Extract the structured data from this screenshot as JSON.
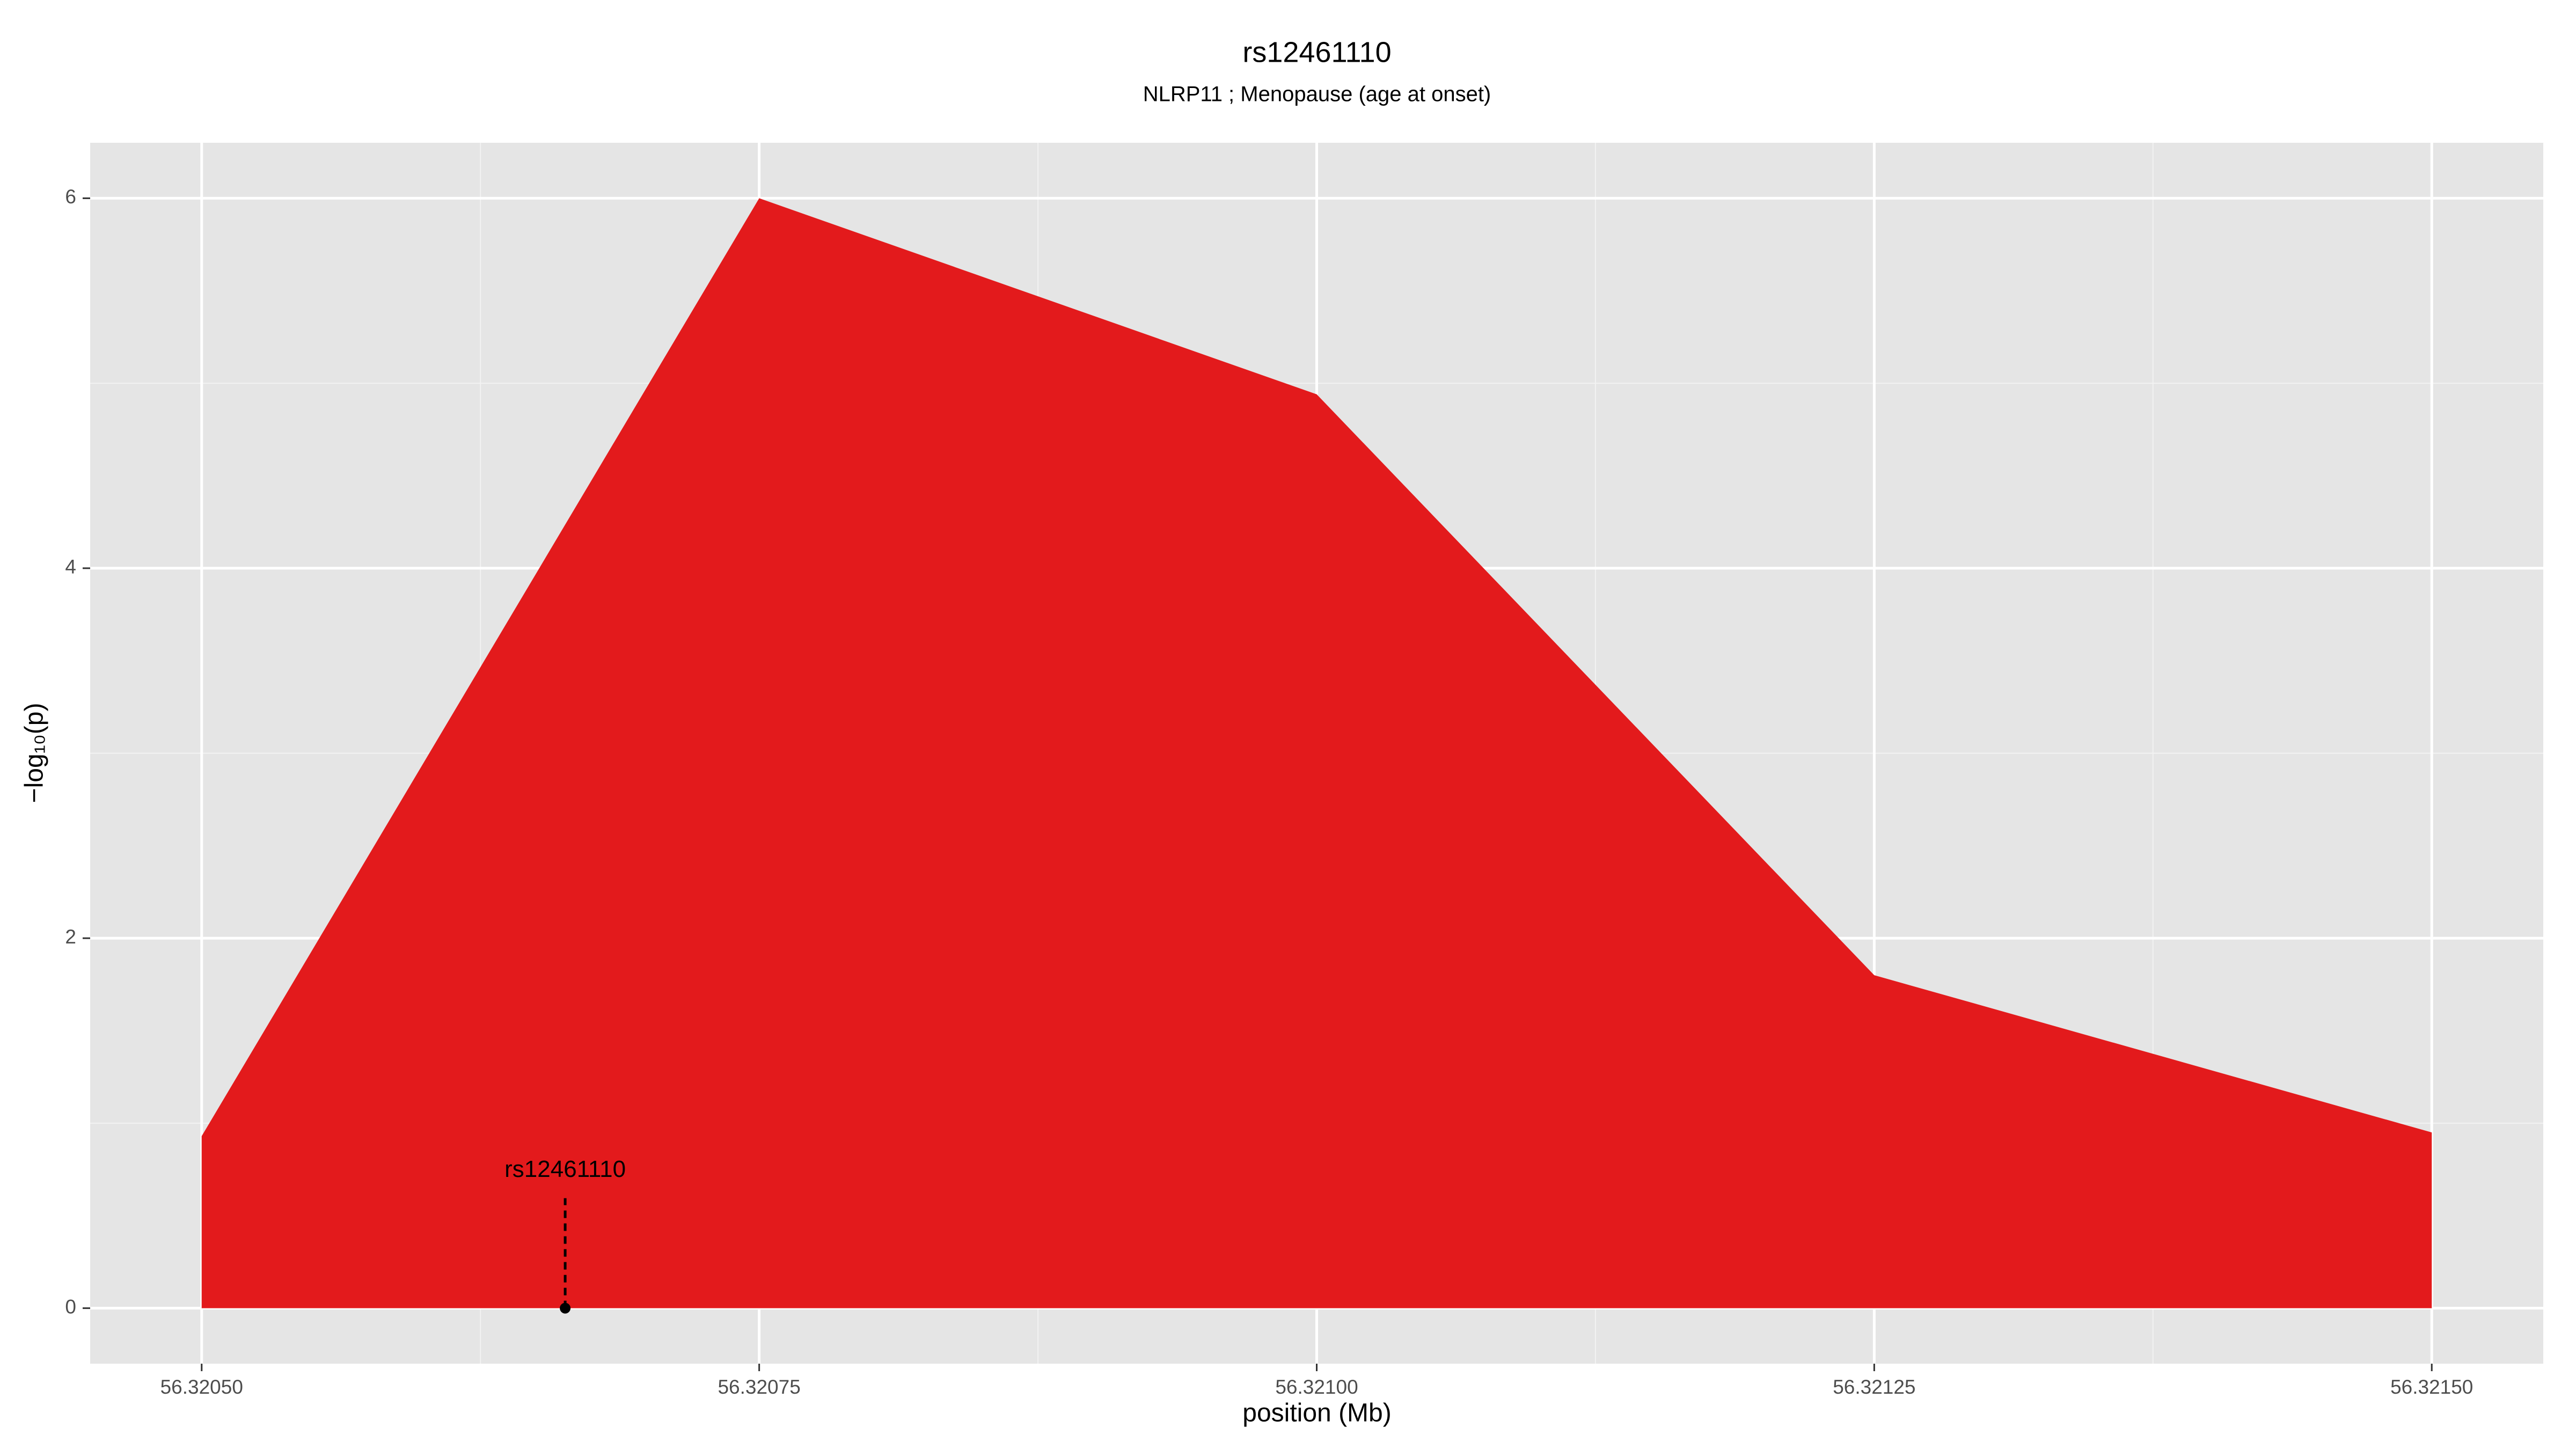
{
  "chart_data": {
    "type": "area",
    "title": "rs12461110",
    "subtitle": "NLRP11 ; Menopause (age at onset)",
    "xlabel": "position (Mb)",
    "ylabel": "−log₁₀(p)",
    "x": [
      56.3205,
      56.32075,
      56.321,
      56.32125,
      56.3215
    ],
    "values": [
      0.93,
      6.0,
      4.94,
      1.8,
      0.95
    ],
    "color": "#e31a1c",
    "xlim": [
      56.32045,
      56.32155
    ],
    "xticks": [
      {
        "value": 56.3205,
        "label": "56.32050"
      },
      {
        "value": 56.32075,
        "label": "56.32075"
      },
      {
        "value": 56.321,
        "label": "56.32100"
      },
      {
        "value": 56.32125,
        "label": "56.32125"
      },
      {
        "value": 56.3215,
        "label": "56.32150"
      }
    ],
    "ylim": [
      -0.3,
      6.3
    ],
    "yticks": [
      0,
      2,
      4,
      6
    ],
    "grid": true,
    "annotation": {
      "label": "rs12461110",
      "x": 56.320663,
      "y": 0
    }
  }
}
